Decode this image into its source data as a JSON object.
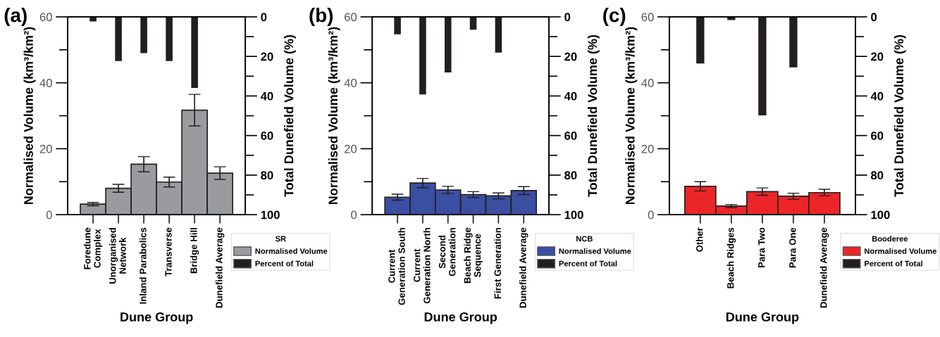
{
  "chart_data": [
    {
      "type": "bar",
      "title": "(a)",
      "xlabel": "Dune Group",
      "ylabel": "Normalised Volume (km³/km²)",
      "y2label": "Total Dunefield Volume (%)",
      "legend_title": "SR",
      "legend": "bottom right",
      "categories": [
        "Foredune\nComplex",
        "Unorganised\nNetwork",
        "Inland Parabolics",
        "Transverse",
        "Bridge Hill",
        "Dunefield Average"
      ],
      "series": [
        {
          "name": "Normalised Volume",
          "color": "#9a9b9f",
          "values": [
            3.2,
            8.0,
            15.3,
            9.9,
            31.7,
            12.6
          ],
          "errors": [
            0.5,
            1.2,
            2.3,
            1.5,
            4.8,
            1.9
          ]
        },
        {
          "name": "Percent of Total",
          "color": "#231f20",
          "axis": "y2",
          "values": [
            2,
            22,
            18,
            22,
            35.6,
            null
          ]
        }
      ],
      "ylim": [
        0,
        60
      ],
      "yticks": [
        0,
        {
          "value": 10,
          "label": null
        },
        20,
        {
          "value": 30,
          "label": null
        },
        40,
        {
          "value": 50,
          "label": null
        },
        60
      ],
      "y2lim": [
        100,
        0
      ],
      "y2ticks": [
        0,
        {
          "value": 10,
          "label": null
        },
        20,
        {
          "value": 30,
          "label": null
        },
        40,
        {
          "value": 50,
          "label": null
        },
        60,
        {
          "value": 70,
          "label": null
        },
        80,
        {
          "value": 90,
          "label": null
        },
        100
      ]
    },
    {
      "type": "bar",
      "title": "(b)",
      "xlabel": "Dune Group",
      "ylabel": "Normalised Volume (km³/km²)",
      "y2label": "Total Dunefield Volume (%)",
      "legend_title": "NCB",
      "legend": "bottom right",
      "categories": [
        "Current\nGeneration South",
        "Current\nGeneration North",
        "Second\nGeneration",
        "Beach Ridge\nSequence",
        "First Generation",
        "Dunefield Average"
      ],
      "series": [
        {
          "name": "Normalised Volume",
          "color": "#3a4ea2",
          "values": [
            5.3,
            9.6,
            7.5,
            6.1,
            5.7,
            7.3
          ],
          "errors": [
            0.9,
            1.4,
            1.1,
            0.9,
            0.9,
            1.2
          ]
        },
        {
          "name": "Percent of Total",
          "color": "#231f20",
          "axis": "y2",
          "values": [
            8.5,
            38.9,
            27.8,
            6.2,
            17.8,
            null
          ]
        }
      ],
      "ylim": [
        0,
        60
      ],
      "yticks": [
        0,
        {
          "value": 10,
          "label": null
        },
        20,
        {
          "value": 30,
          "label": null
        },
        40,
        {
          "value": 50,
          "label": null
        },
        60
      ],
      "y2lim": [
        100,
        0
      ],
      "y2ticks": [
        0,
        {
          "value": 10,
          "label": null
        },
        20,
        {
          "value": 30,
          "label": null
        },
        40,
        {
          "value": 50,
          "label": null
        },
        60,
        {
          "value": 70,
          "label": null
        },
        80,
        {
          "value": 90,
          "label": null
        },
        100
      ]
    },
    {
      "type": "bar",
      "title": "(c)",
      "xlabel": "Dune Group",
      "ylabel": "Normalised Volume (km³/km²)",
      "y2label": "Total Dunefield Volume (%)",
      "legend_title": "Booderee",
      "legend": "bottom right",
      "categories": [
        "Other",
        "Beach Ridges",
        "Para Two",
        "Para One",
        "Dunefield Average"
      ],
      "series": [
        {
          "name": "Normalised Volume",
          "color": "#ec2528",
          "values": [
            8.6,
            2.6,
            7.0,
            5.6,
            6.7
          ],
          "errors": [
            1.4,
            0.5,
            1.1,
            0.9,
            1.0
          ]
        },
        {
          "name": "Percent of Total",
          "color": "#231f20",
          "axis": "y2",
          "values": [
            23.3,
            1.3,
            49.5,
            25.2,
            null
          ]
        }
      ],
      "ylim": [
        0,
        60
      ],
      "yticks": [
        0,
        {
          "value": 10,
          "label": null
        },
        20,
        {
          "value": 30,
          "label": null
        },
        40,
        {
          "value": 50,
          "label": null
        },
        60
      ],
      "y2lim": [
        100,
        0
      ],
      "y2ticks": [
        0,
        {
          "value": 10,
          "label": null
        },
        20,
        {
          "value": 30,
          "label": null
        },
        40,
        {
          "value": 50,
          "label": null
        },
        60,
        {
          "value": 70,
          "label": null
        },
        80,
        {
          "value": 90,
          "label": null
        },
        100
      ]
    }
  ]
}
